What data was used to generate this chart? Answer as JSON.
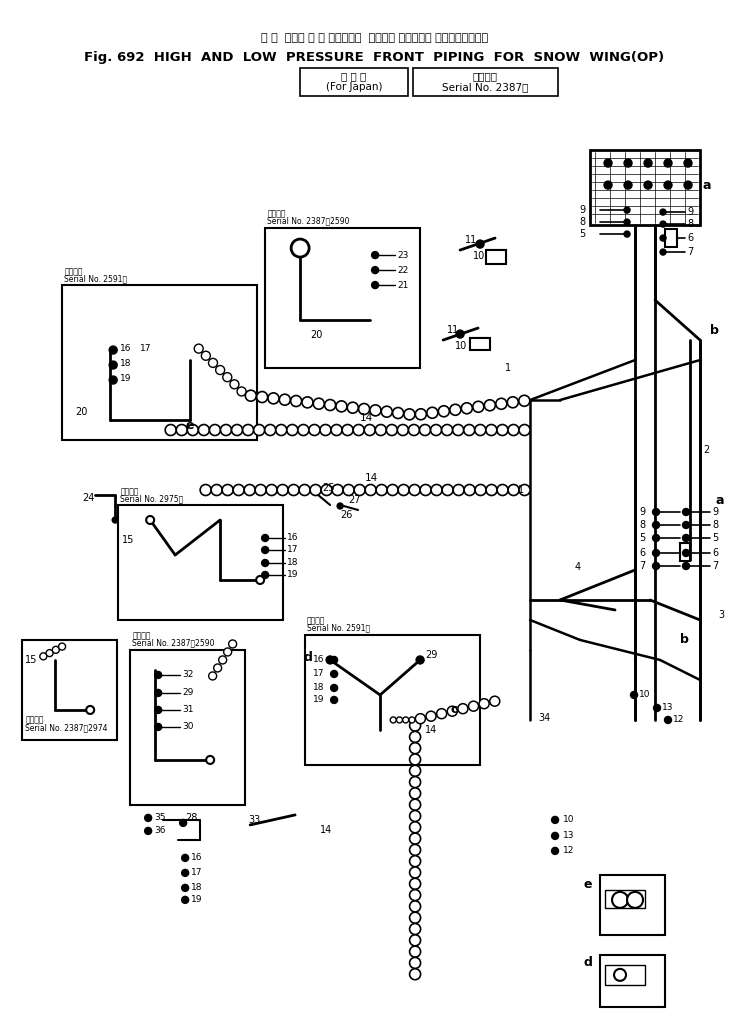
{
  "title_jp": "ハ イ  および ロ ー ブレッシャ  フロント パイピング スノウウィング用",
  "title_en": "Fig. 692  HIGH  AND  LOW  PRESSURE  FRONT  PIPING  FOR  SNOW  WING(OP)",
  "sub1_box": "国 内 向",
  "sub1_en": "For Japan",
  "sub2_box": "適用号機",
  "sub2_en": "Serial No. 2387～",
  "bg": "#ffffff",
  "black": "#000000"
}
